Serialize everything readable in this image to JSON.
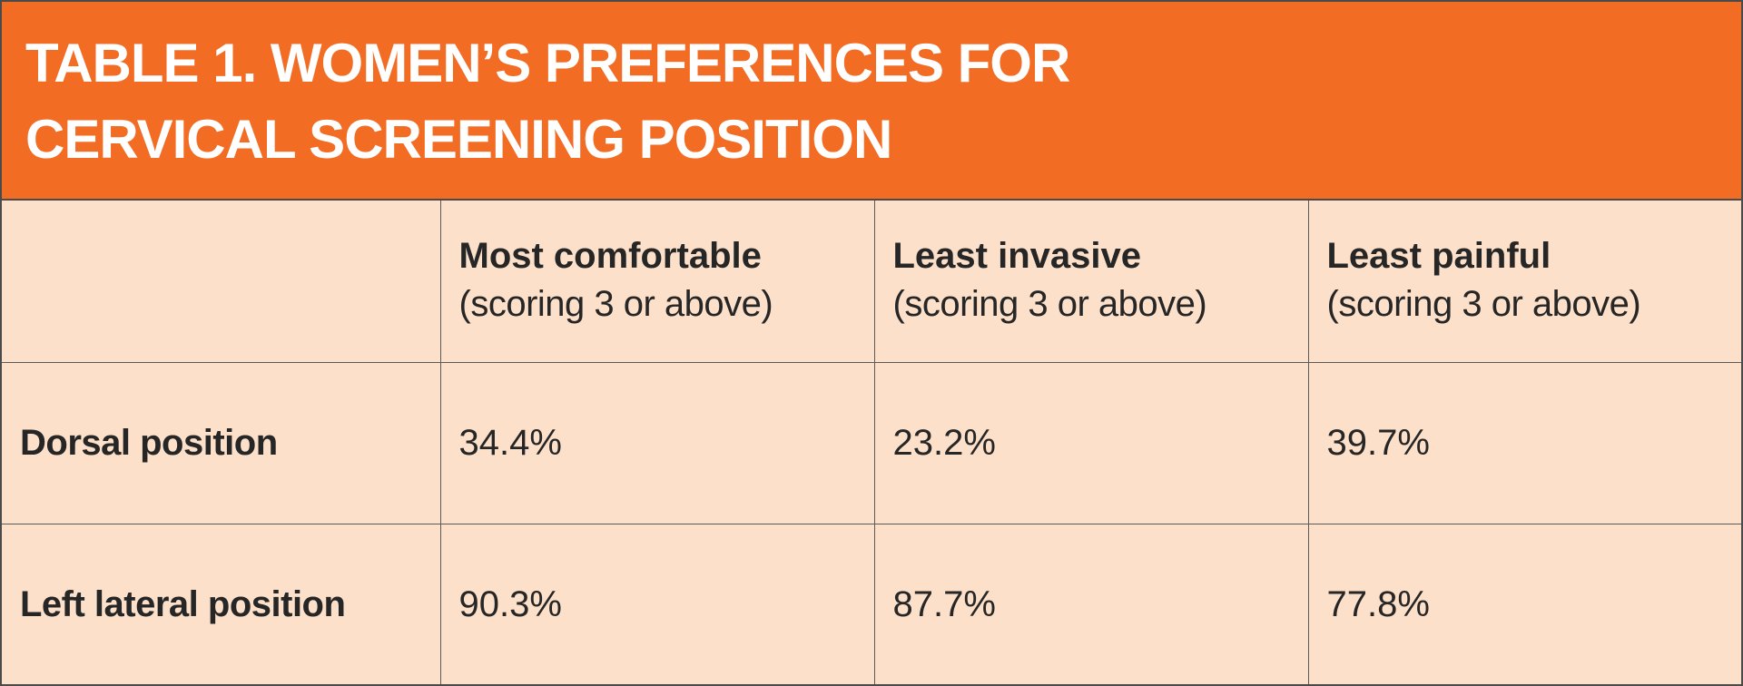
{
  "title": {
    "line1": "TABLE 1. WOMEN’S PREFERENCES FOR",
    "line2": "CERVICAL SCREENING POSITION"
  },
  "columns": [
    {
      "label": "Most comfortable",
      "sublabel": "(scoring 3 or above)"
    },
    {
      "label": "Least invasive",
      "sublabel": "(scoring 3 or above)"
    },
    {
      "label": "Least painful",
      "sublabel": "(scoring 3 or above)"
    }
  ],
  "rows": [
    {
      "label": "Dorsal position",
      "values": [
        "34.4%",
        "23.2%",
        "39.7%"
      ]
    },
    {
      "label": "Left lateral position",
      "values": [
        "90.3%",
        "87.7%",
        "77.8%"
      ]
    }
  ],
  "colors": {
    "header_bg": "#f26c24",
    "table_bg": "#fde0c9",
    "border": "#5a5a5a"
  }
}
